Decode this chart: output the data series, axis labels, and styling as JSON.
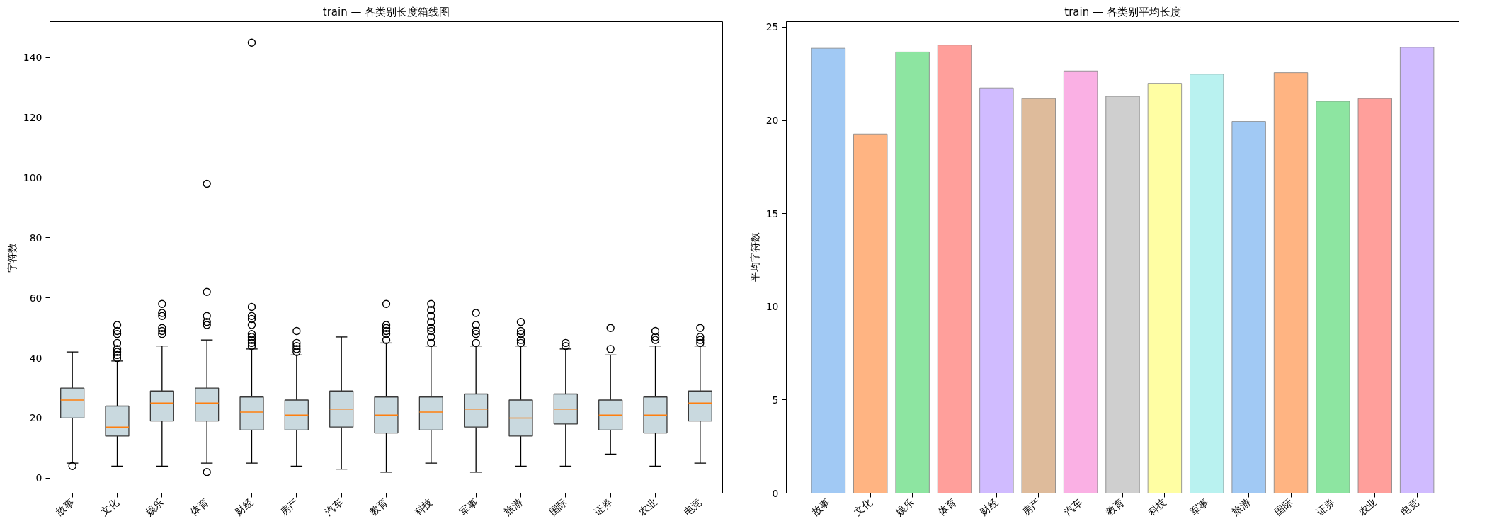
{
  "chart_data": [
    {
      "type": "box",
      "title": "train — 各类别长度箱线图",
      "ylabel": "字符数",
      "categories": [
        "故事",
        "文化",
        "娱乐",
        "体育",
        "财经",
        "房产",
        "汽车",
        "教育",
        "科技",
        "军事",
        "旅游",
        "国际",
        "证券",
        "农业",
        "电竞"
      ],
      "ylim": [
        -5,
        152
      ],
      "yticks": [
        0,
        20,
        40,
        60,
        80,
        100,
        120,
        140
      ],
      "grid": false,
      "series": [
        {
          "color": "#c9d9df",
          "boxes": [
            {
              "low": 5,
              "q1": 20,
              "median": 26,
              "q3": 30,
              "high": 42,
              "outliers": [
                4
              ]
            },
            {
              "low": 4,
              "q1": 14,
              "median": 17,
              "q3": 24,
              "high": 39,
              "outliers": [
                40,
                41,
                42,
                43,
                45,
                48,
                49,
                51
              ]
            },
            {
              "low": 4,
              "q1": 19,
              "median": 25,
              "q3": 29,
              "high": 44,
              "outliers": [
                48,
                49,
                50,
                54,
                55,
                58
              ]
            },
            {
              "low": 5,
              "q1": 19,
              "median": 25,
              "q3": 30,
              "high": 46,
              "outliers": [
                2,
                51,
                52,
                54,
                62,
                98
              ]
            },
            {
              "low": 5,
              "q1": 16,
              "median": 22,
              "q3": 27,
              "high": 43,
              "outliers": [
                44,
                45,
                46,
                47,
                48,
                51,
                53,
                54,
                57,
                145
              ]
            },
            {
              "low": 4,
              "q1": 16,
              "median": 21,
              "q3": 26,
              "high": 41,
              "outliers": [
                42,
                43,
                44,
                45,
                49
              ]
            },
            {
              "low": 3,
              "q1": 17,
              "median": 23,
              "q3": 29,
              "high": 47
            },
            {
              "low": 2,
              "q1": 15,
              "median": 21,
              "q3": 27,
              "high": 45,
              "outliers": [
                46,
                48,
                49,
                50,
                51,
                58
              ]
            },
            {
              "low": 5,
              "q1": 16,
              "median": 22,
              "q3": 27,
              "high": 44,
              "outliers": [
                45,
                47,
                49,
                50,
                52,
                54,
                56,
                58
              ]
            },
            {
              "low": 2,
              "q1": 17,
              "median": 23,
              "q3": 28,
              "high": 44,
              "outliers": [
                45,
                48,
                49,
                51,
                55
              ]
            },
            {
              "low": 4,
              "q1": 14,
              "median": 20,
              "q3": 26,
              "high": 44,
              "outliers": [
                45,
                46,
                48,
                49,
                52
              ]
            },
            {
              "low": 4,
              "q1": 18,
              "median": 23,
              "q3": 28,
              "high": 43,
              "outliers": [
                44,
                45
              ]
            },
            {
              "low": 8,
              "q1": 16,
              "median": 21,
              "q3": 26,
              "high": 41,
              "outliers": [
                43,
                50
              ]
            },
            {
              "low": 4,
              "q1": 15,
              "median": 21,
              "q3": 27,
              "high": 44,
              "outliers": [
                46,
                47,
                49
              ]
            },
            {
              "low": 5,
              "q1": 19,
              "median": 25,
              "q3": 29,
              "high": 44,
              "outliers": [
                45,
                46,
                47,
                50
              ]
            }
          ]
        }
      ]
    },
    {
      "type": "bar",
      "title": "train — 各类别平均长度",
      "ylabel": "平均字符数",
      "categories": [
        "故事",
        "文化",
        "娱乐",
        "体育",
        "财经",
        "房产",
        "汽车",
        "教育",
        "科技",
        "军事",
        "旅游",
        "国际",
        "证券",
        "农业",
        "电竞"
      ],
      "values": [
        23.87,
        19.27,
        23.67,
        24.04,
        21.74,
        21.17,
        22.65,
        21.29,
        21.99,
        22.48,
        19.94,
        22.56,
        21.03,
        21.17,
        23.92
      ],
      "colors": [
        "#a1c9f4",
        "#ffb482",
        "#8de5a1",
        "#ff9f9b",
        "#d0bbff",
        "#debb9b",
        "#fab0e4",
        "#cfcfcf",
        "#fffea3",
        "#b9f2f0",
        "#a1c9f4",
        "#ffb482",
        "#8de5a1",
        "#ff9f9b",
        "#d0bbff"
      ],
      "ylim": [
        0,
        25.3
      ],
      "yticks": [
        0,
        5,
        10,
        15,
        20,
        25
      ],
      "grid": false
    }
  ]
}
